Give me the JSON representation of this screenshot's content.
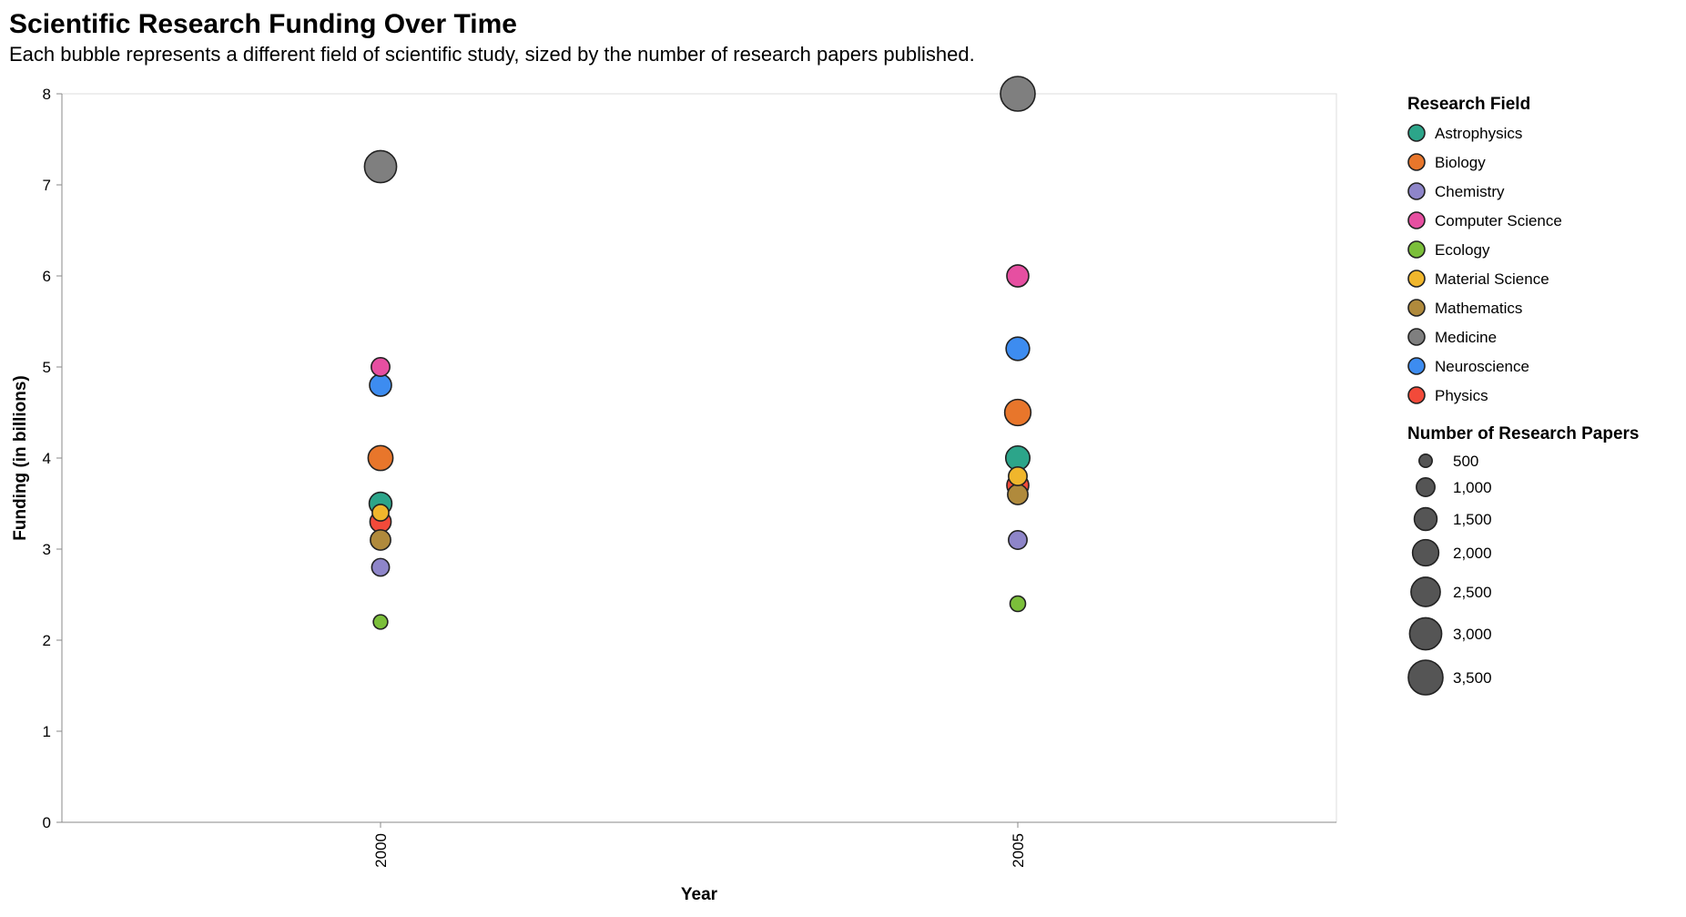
{
  "chart_data": {
    "type": "scatter",
    "title": "Scientific Research Funding Over Time",
    "subtitle": "Each bubble represents a different field of scientific study, sized by the number of research papers published.",
    "xlabel": "Year",
    "ylabel": "Funding (in billions)",
    "x_categories": [
      "2000",
      "2005"
    ],
    "ylim": [
      0,
      8
    ],
    "y_ticks": [
      0,
      1,
      2,
      3,
      4,
      5,
      6,
      7,
      8
    ],
    "grid": false,
    "color_legend": {
      "title": "Research Field",
      "placement": "right",
      "entries": [
        {
          "name": "Astrophysics",
          "color": "#2ca58a"
        },
        {
          "name": "Biology",
          "color": "#e8762b"
        },
        {
          "name": "Chemistry",
          "color": "#8e85c9"
        },
        {
          "name": "Computer Science",
          "color": "#e64fa1"
        },
        {
          "name": "Ecology",
          "color": "#7bbf3a"
        },
        {
          "name": "Material Science",
          "color": "#f0b62c"
        },
        {
          "name": "Mathematics",
          "color": "#b08a3c"
        },
        {
          "name": "Medicine",
          "color": "#7f7f7f"
        },
        {
          "name": "Neuroscience",
          "color": "#3d8cf0"
        },
        {
          "name": "Physics",
          "color": "#f24a3a"
        }
      ]
    },
    "size_legend": {
      "title": "Number of Research Papers",
      "values": [
        500,
        1000,
        1500,
        2000,
        2500,
        3000,
        3500
      ],
      "labels": [
        "500",
        "1,000",
        "1,500",
        "2,000",
        "2,500",
        "3,000",
        "3,500"
      ]
    },
    "points": [
      {
        "field": "Medicine",
        "year": "2000",
        "funding": 7.2,
        "papers": 3000
      },
      {
        "field": "Computer Science",
        "year": "2000",
        "funding": 5.0,
        "papers": 1000
      },
      {
        "field": "Neuroscience",
        "year": "2000",
        "funding": 4.8,
        "papers": 1400
      },
      {
        "field": "Biology",
        "year": "2000",
        "funding": 4.0,
        "papers": 1800
      },
      {
        "field": "Astrophysics",
        "year": "2000",
        "funding": 3.5,
        "papers": 1500
      },
      {
        "field": "Material Science",
        "year": "2000",
        "funding": 3.4,
        "papers": 800
      },
      {
        "field": "Physics",
        "year": "2000",
        "funding": 3.3,
        "papers": 1300
      },
      {
        "field": "Mathematics",
        "year": "2000",
        "funding": 3.1,
        "papers": 1200
      },
      {
        "field": "Chemistry",
        "year": "2000",
        "funding": 2.8,
        "papers": 900
      },
      {
        "field": "Ecology",
        "year": "2000",
        "funding": 2.2,
        "papers": 600
      },
      {
        "field": "Medicine",
        "year": "2005",
        "funding": 8.0,
        "papers": 3500
      },
      {
        "field": "Computer Science",
        "year": "2005",
        "funding": 6.0,
        "papers": 1400
      },
      {
        "field": "Neuroscience",
        "year": "2005",
        "funding": 5.2,
        "papers": 1600
      },
      {
        "field": "Biology",
        "year": "2005",
        "funding": 4.5,
        "papers": 2000
      },
      {
        "field": "Astrophysics",
        "year": "2005",
        "funding": 4.0,
        "papers": 1700
      },
      {
        "field": "Material Science",
        "year": "2005",
        "funding": 3.8,
        "papers": 1000
      },
      {
        "field": "Physics",
        "year": "2005",
        "funding": 3.7,
        "papers": 1400
      },
      {
        "field": "Mathematics",
        "year": "2005",
        "funding": 3.6,
        "papers": 1200
      },
      {
        "field": "Chemistry",
        "year": "2005",
        "funding": 3.1,
        "papers": 1000
      },
      {
        "field": "Ecology",
        "year": "2005",
        "funding": 2.4,
        "papers": 700
      }
    ]
  }
}
